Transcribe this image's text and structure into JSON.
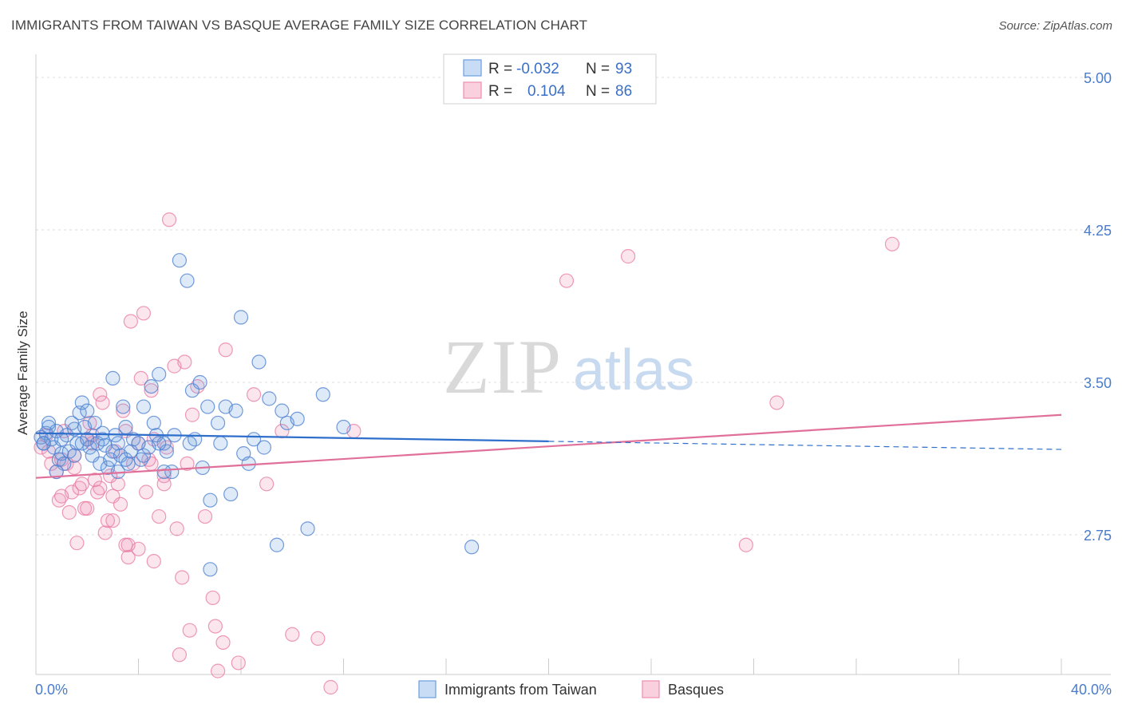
{
  "title": "IMMIGRANTS FROM TAIWAN VS BASQUE AVERAGE FAMILY SIZE CORRELATION CHART",
  "source": "Source: ZipAtlas.com",
  "watermark": {
    "zip": "ZIP",
    "atlas": "atlas"
  },
  "colors": {
    "blue": "#6a9ee0",
    "blue_line": "#2f6fcc",
    "pink": "#ee8fb0",
    "pink_line": "#e0709a",
    "grid": "#dddddd",
    "axis_label": "#4a7cc9"
  },
  "legend": {
    "rows": [
      {
        "r_label": "R =",
        "r_value": "-0.032",
        "n_label": "N =",
        "n_value": "93"
      },
      {
        "r_label": "R =",
        "r_value": "0.104",
        "n_label": "N =",
        "n_value": "86"
      }
    ]
  },
  "chart_data": {
    "type": "scatter",
    "title": "IMMIGRANTS FROM TAIWAN VS BASQUE AVERAGE FAMILY SIZE CORRELATION CHART",
    "xlabel": "",
    "ylabel": "Average Family Size",
    "xlim": [
      0,
      40
    ],
    "ylim": [
      2.0,
      5.1
    ],
    "x_tick_labels": [
      "0.0%",
      "40.0%"
    ],
    "y_ticks": [
      2.75,
      3.5,
      4.25,
      5.0
    ],
    "y_tick_labels": [
      "2.75",
      "3.50",
      "4.25",
      "5.00"
    ],
    "grid": true,
    "legend_position": "top-center",
    "series": [
      {
        "name": "Immigrants from Taiwan",
        "color": "#6a9ee0",
        "trend": {
          "x0": 0,
          "y0": 3.25,
          "x1": 40,
          "y1": 3.17,
          "solid_until": 20
        },
        "points": [
          [
            0.2,
            3.23
          ],
          [
            0.3,
            3.2
          ],
          [
            0.4,
            3.25
          ],
          [
            0.5,
            3.28
          ],
          [
            0.6,
            3.22
          ],
          [
            0.7,
            3.18
          ],
          [
            0.8,
            3.26
          ],
          [
            0.9,
            3.12
          ],
          [
            1.0,
            3.15
          ],
          [
            1.1,
            3.1
          ],
          [
            1.2,
            3.24
          ],
          [
            1.3,
            3.16
          ],
          [
            1.4,
            3.3
          ],
          [
            1.5,
            3.27
          ],
          [
            1.6,
            3.2
          ],
          [
            1.7,
            3.35
          ],
          [
            1.8,
            3.4
          ],
          [
            1.9,
            3.28
          ],
          [
            2.0,
            3.22
          ],
          [
            2.1,
            3.18
          ],
          [
            2.2,
            3.14
          ],
          [
            2.3,
            3.3
          ],
          [
            2.4,
            3.2
          ],
          [
            2.5,
            3.1
          ],
          [
            2.6,
            3.25
          ],
          [
            2.7,
            3.19
          ],
          [
            2.8,
            3.08
          ],
          [
            2.9,
            3.12
          ],
          [
            3.0,
            3.52
          ],
          [
            3.1,
            3.24
          ],
          [
            3.2,
            3.2
          ],
          [
            3.3,
            3.14
          ],
          [
            3.4,
            3.38
          ],
          [
            3.5,
            3.28
          ],
          [
            3.6,
            3.1
          ],
          [
            3.7,
            3.16
          ],
          [
            3.8,
            3.22
          ],
          [
            4.0,
            3.2
          ],
          [
            4.1,
            3.12
          ],
          [
            4.2,
            3.14
          ],
          [
            4.4,
            3.18
          ],
          [
            4.5,
            3.48
          ],
          [
            4.6,
            3.3
          ],
          [
            4.7,
            3.24
          ],
          [
            4.8,
            3.54
          ],
          [
            5.0,
            3.2
          ],
          [
            5.1,
            3.16
          ],
          [
            5.3,
            3.06
          ],
          [
            5.4,
            3.24
          ],
          [
            5.6,
            4.1
          ],
          [
            5.9,
            4.0
          ],
          [
            6.1,
            3.46
          ],
          [
            6.2,
            3.22
          ],
          [
            6.4,
            3.5
          ],
          [
            6.5,
            3.08
          ],
          [
            6.7,
            3.38
          ],
          [
            6.8,
            2.92
          ],
          [
            7.1,
            3.3
          ],
          [
            7.2,
            3.2
          ],
          [
            7.4,
            3.38
          ],
          [
            7.6,
            2.95
          ],
          [
            7.8,
            3.36
          ],
          [
            8.0,
            3.82
          ],
          [
            8.1,
            3.15
          ],
          [
            8.3,
            3.1
          ],
          [
            8.5,
            3.22
          ],
          [
            8.7,
            3.6
          ],
          [
            8.9,
            3.18
          ],
          [
            9.1,
            3.42
          ],
          [
            9.4,
            2.7
          ],
          [
            9.6,
            3.36
          ],
          [
            9.8,
            3.3
          ],
          [
            10.2,
            3.32
          ],
          [
            10.6,
            2.78
          ],
          [
            11.2,
            3.44
          ],
          [
            12.0,
            3.28
          ],
          [
            0.5,
            3.3
          ],
          [
            0.8,
            3.06
          ],
          [
            1.5,
            3.14
          ],
          [
            2.0,
            3.36
          ],
          [
            2.6,
            3.22
          ],
          [
            3.0,
            3.16
          ],
          [
            3.5,
            3.12
          ],
          [
            4.2,
            3.38
          ],
          [
            6.0,
            3.2
          ],
          [
            6.8,
            2.58
          ],
          [
            5.0,
            3.06
          ],
          [
            0.3,
            3.2
          ],
          [
            1.0,
            3.22
          ],
          [
            1.8,
            3.2
          ],
          [
            3.2,
            3.06
          ],
          [
            17.0,
            2.69
          ],
          [
            4.8,
            3.2
          ]
        ]
      },
      {
        "name": "Basques",
        "color": "#ee8fb0",
        "trend": {
          "x0": 0,
          "y0": 3.03,
          "x1": 40,
          "y1": 3.34
        },
        "points": [
          [
            0.2,
            3.18
          ],
          [
            0.4,
            3.24
          ],
          [
            0.6,
            3.1
          ],
          [
            0.8,
            3.06
          ],
          [
            0.9,
            2.92
          ],
          [
            1.0,
            3.12
          ],
          [
            1.1,
            3.26
          ],
          [
            1.3,
            2.86
          ],
          [
            1.4,
            2.96
          ],
          [
            1.5,
            3.14
          ],
          [
            1.6,
            2.71
          ],
          [
            1.7,
            2.98
          ],
          [
            1.8,
            3.0
          ],
          [
            1.9,
            2.88
          ],
          [
            2.0,
            3.22
          ],
          [
            2.1,
            3.3
          ],
          [
            2.2,
            3.2
          ],
          [
            2.3,
            3.02
          ],
          [
            2.4,
            2.96
          ],
          [
            2.5,
            3.44
          ],
          [
            2.6,
            3.4
          ],
          [
            2.7,
            2.76
          ],
          [
            2.8,
            2.82
          ],
          [
            2.9,
            3.04
          ],
          [
            3.0,
            2.94
          ],
          [
            3.1,
            3.16
          ],
          [
            3.2,
            3.0
          ],
          [
            3.3,
            2.9
          ],
          [
            3.4,
            3.36
          ],
          [
            3.5,
            2.7
          ],
          [
            3.6,
            2.64
          ],
          [
            3.7,
            3.8
          ],
          [
            3.8,
            3.1
          ],
          [
            4.0,
            2.68
          ],
          [
            4.1,
            3.52
          ],
          [
            4.2,
            3.84
          ],
          [
            4.3,
            2.96
          ],
          [
            4.4,
            3.12
          ],
          [
            4.5,
            3.46
          ],
          [
            4.6,
            2.62
          ],
          [
            4.8,
            2.84
          ],
          [
            5.0,
            3.04
          ],
          [
            5.1,
            3.18
          ],
          [
            5.2,
            4.3
          ],
          [
            5.4,
            3.58
          ],
          [
            5.5,
            2.78
          ],
          [
            5.6,
            2.16
          ],
          [
            5.7,
            2.54
          ],
          [
            5.8,
            3.6
          ],
          [
            5.9,
            3.1
          ],
          [
            6.0,
            2.28
          ],
          [
            6.1,
            3.34
          ],
          [
            6.3,
            3.48
          ],
          [
            6.6,
            2.84
          ],
          [
            6.9,
            2.44
          ],
          [
            7.0,
            2.3
          ],
          [
            7.1,
            2.08
          ],
          [
            7.3,
            2.22
          ],
          [
            7.4,
            3.66
          ],
          [
            7.9,
            2.12
          ],
          [
            8.5,
            3.44
          ],
          [
            9.0,
            3.0
          ],
          [
            10.0,
            2.26
          ],
          [
            11.0,
            2.24
          ],
          [
            11.5,
            2.0
          ],
          [
            20.7,
            4.0
          ],
          [
            23.1,
            4.12
          ],
          [
            27.7,
            2.7
          ],
          [
            28.9,
            3.4
          ],
          [
            33.4,
            4.18
          ],
          [
            0.5,
            3.16
          ],
          [
            1.0,
            2.94
          ],
          [
            1.5,
            3.08
          ],
          [
            2.0,
            2.88
          ],
          [
            2.5,
            2.98
          ],
          [
            3.0,
            2.82
          ],
          [
            3.5,
            3.26
          ],
          [
            4.0,
            3.2
          ],
          [
            4.5,
            3.1
          ],
          [
            5.0,
            3.0
          ],
          [
            1.2,
            3.1
          ],
          [
            2.2,
            3.24
          ],
          [
            3.6,
            2.7
          ],
          [
            4.6,
            3.22
          ],
          [
            9.6,
            3.26
          ],
          [
            12.4,
            3.26
          ]
        ]
      }
    ]
  },
  "bottom_legend": [
    {
      "label": "Immigrants from Taiwan"
    },
    {
      "label": "Basques"
    }
  ]
}
